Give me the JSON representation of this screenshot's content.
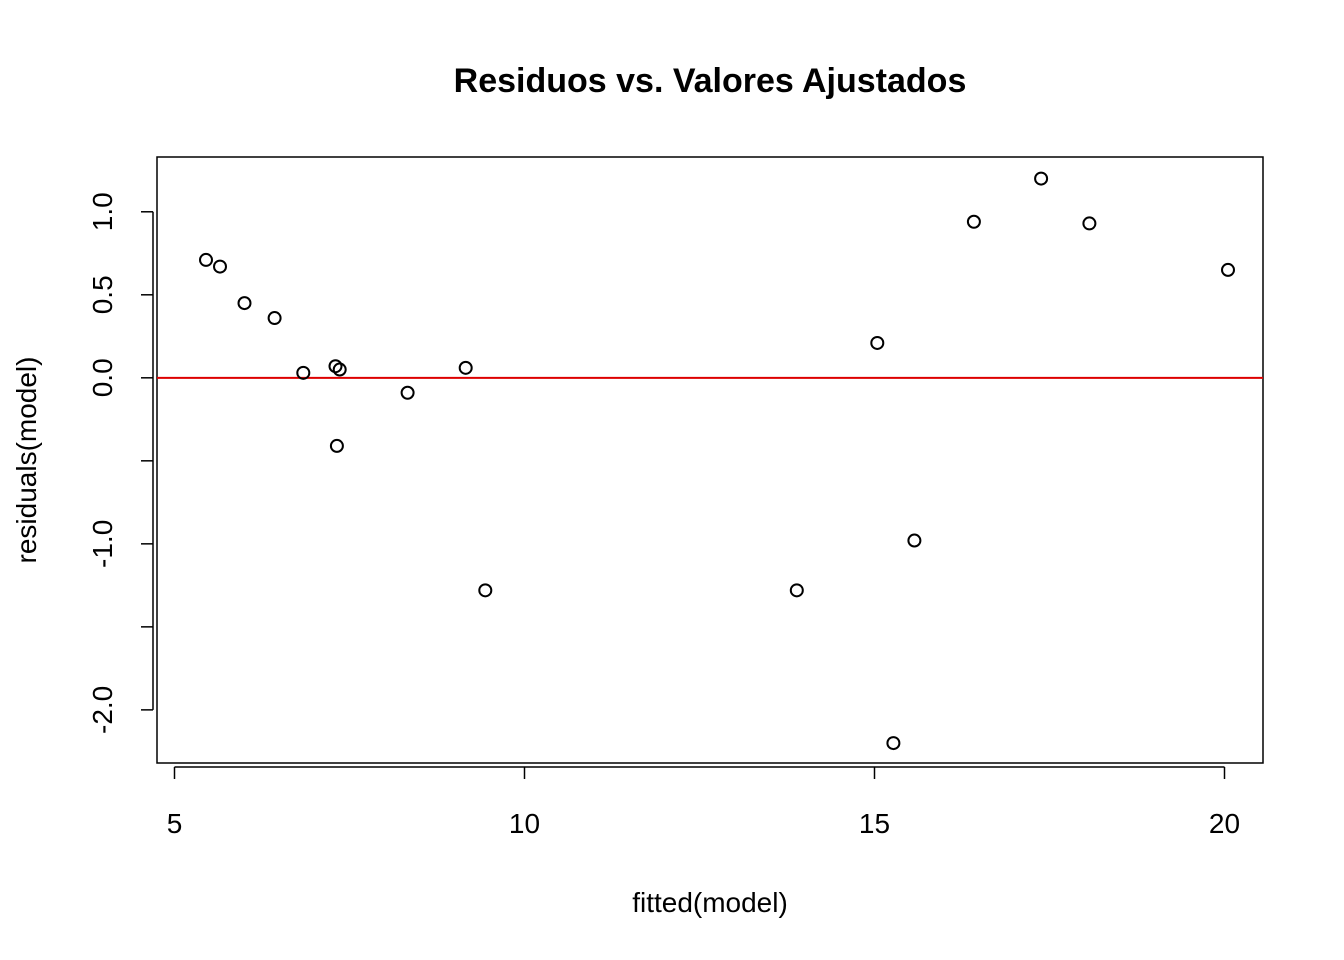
{
  "chart_data": {
    "type": "scatter",
    "title": "Residuos vs. Valores Ajustados",
    "xlabel": "fitted(model)",
    "ylabel": "residuals(model)",
    "xlim": [
      4.75,
      20.55
    ],
    "ylim": [
      -2.32,
      1.33
    ],
    "x_ticks": [
      5,
      10,
      15,
      20
    ],
    "x_tick_labels": [
      "5",
      "10",
      "15",
      "20"
    ],
    "y_ticks": [
      -2.0,
      -1.5,
      -1.0,
      -0.5,
      0.0,
      0.5,
      1.0
    ],
    "y_tick_labels": [
      "-2.0",
      "",
      "-1.0",
      "",
      "0.0",
      "0.5",
      "1.0"
    ],
    "reference_line": {
      "y": 0.0,
      "color": "#dd0000"
    },
    "grid": false,
    "points": [
      {
        "x": 5.45,
        "y": 0.71
      },
      {
        "x": 5.65,
        "y": 0.67
      },
      {
        "x": 6.0,
        "y": 0.45
      },
      {
        "x": 6.43,
        "y": 0.36
      },
      {
        "x": 6.84,
        "y": 0.03
      },
      {
        "x": 7.3,
        "y": 0.07
      },
      {
        "x": 7.36,
        "y": 0.05
      },
      {
        "x": 7.32,
        "y": -0.41
      },
      {
        "x": 8.33,
        "y": -0.09
      },
      {
        "x": 9.16,
        "y": 0.06
      },
      {
        "x": 9.44,
        "y": -1.28
      },
      {
        "x": 13.89,
        "y": -1.28
      },
      {
        "x": 15.04,
        "y": 0.21
      },
      {
        "x": 15.27,
        "y": -2.2
      },
      {
        "x": 15.57,
        "y": -0.98
      },
      {
        "x": 16.42,
        "y": 0.94
      },
      {
        "x": 17.38,
        "y": 1.2
      },
      {
        "x": 18.07,
        "y": 0.93
      },
      {
        "x": 20.05,
        "y": 0.65
      }
    ]
  }
}
